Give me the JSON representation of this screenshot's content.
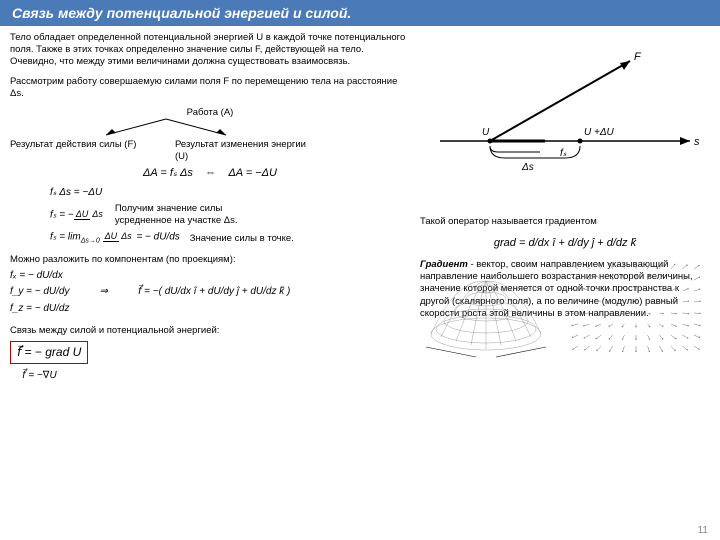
{
  "header": {
    "title": "Связь между потенциальной энергией и силой."
  },
  "intro": {
    "p1": "Тело обладает определенной потенциальной энергией U в каждой точке потенциального поля. Также в этих точках определенно значение силы F, действующей на тело. Очевидно, что между этими величинами должна существовать взаимосвязь.",
    "p2": "Рассмотрим работу совершаемую силами поля F по перемещению тела на расстояние Δs."
  },
  "work": {
    "label": "Работа (A)",
    "left_h": "Результат действия силы (F)",
    "right_h": "Результат изменения энергии (U)",
    "eq_left": "ΔA = fₛ Δs",
    "eq_right": "ΔA = −ΔU",
    "arrow": "⇔"
  },
  "deriv": {
    "line1": "fₛ Δs = −ΔU",
    "line2_l": "fₛ = −",
    "line2_note": "Получим значение силы усредненное на участке Δs.",
    "line3_l": "fₛ = lim",
    "line3_r": " = − dU/ds",
    "line3_note": "Значение силы в точке."
  },
  "components": {
    "intro": "Можно разложить по компонентам (по проекциям):",
    "fx": "fₓ = − dU/dx",
    "fy": "f_y = − dU/dy",
    "fz": "f_z = − dU/dz",
    "vec": "f⃗ = −( dU/dx î + dU/dy ĵ + dU/dz k̂ )"
  },
  "final": {
    "text": "Связь между силой и потенциальной энергией:",
    "boxed": "f⃗ = − grad U",
    "nabla": "f⃗ = −∇U"
  },
  "right": {
    "grad_intro": "Такой оператор называется градиентом",
    "grad_eq": "grad = d/dx î + d/dy ĵ + d/dz k̂",
    "grad_def": "Градиент - вектор, своим направлением указывающий направление наибольшего возрастания некоторой величины, значение которой меняется от одной точки пространства к другой (скалярного поля), а по величине (модулю) равный скорости роста этой величины в этом направлении."
  },
  "diagram": {
    "labels": {
      "U": "U",
      "UdU": "U +ΔU",
      "ds": "Δs",
      "fs": "fₛ",
      "s": "s",
      "F": "F"
    }
  },
  "page": "11",
  "colors": {
    "header_bg": "#4a7ab8",
    "header_text": "#ffffff",
    "box_border": "#b00020",
    "text": "#000000",
    "surface1": "#888888",
    "surface2": "#cccccc",
    "grad_col1": "#2040a0",
    "grad_col2": "#20a040",
    "grad_col3": "#c02020"
  }
}
